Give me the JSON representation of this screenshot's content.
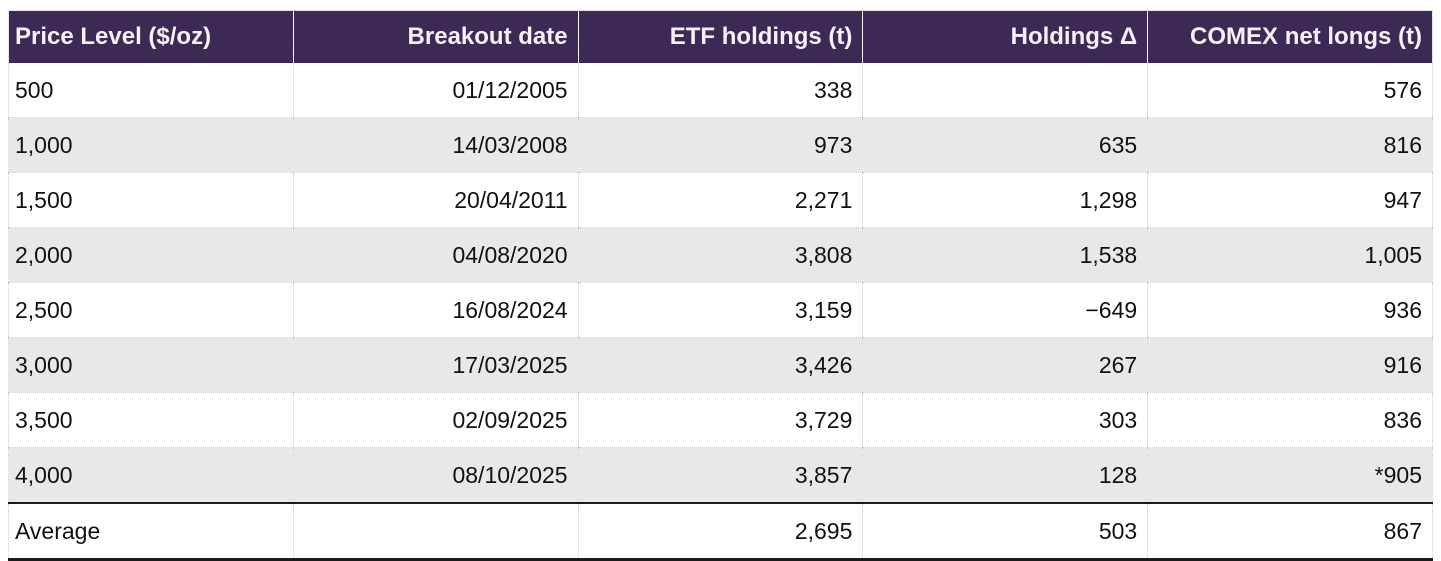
{
  "colors": {
    "header_bg": "#3d2a54",
    "header_text": "#f5f0fa",
    "row_bg": "#ffffff",
    "row_alt_bg": "#e8e8e8",
    "body_text": "#111111",
    "dotted_divider": "#cccccc",
    "strong_rule": "#1c1c1c"
  },
  "table": {
    "columns": [
      {
        "label": "Price Level ($/oz)",
        "align": "left"
      },
      {
        "label": "Breakout date",
        "align": "right"
      },
      {
        "label": "ETF holdings (t)",
        "align": "right"
      },
      {
        "label": "Holdings Δ",
        "align": "right"
      },
      {
        "label": "COMEX net longs (t)",
        "align": "right"
      }
    ],
    "rows": [
      [
        "500",
        "01/12/2005",
        "338",
        "",
        "576"
      ],
      [
        "1,000",
        "14/03/2008",
        "973",
        "635",
        "816"
      ],
      [
        "1,500",
        "20/04/2011",
        "2,271",
        "1,298",
        "947"
      ],
      [
        "2,000",
        "04/08/2020",
        "3,808",
        "1,538",
        "1,005"
      ],
      [
        "2,500",
        "16/08/2024",
        "3,159",
        "−649",
        "936"
      ],
      [
        "3,000",
        "17/03/2025",
        "3,426",
        "267",
        "916"
      ],
      [
        "3,500",
        "02/09/2025",
        "3,729",
        "303",
        "836"
      ],
      [
        "4,000",
        "08/10/2025",
        "3,857",
        "128",
        "*905"
      ]
    ],
    "summary_row": [
      "Average",
      "",
      "2,695",
      "503",
      "867"
    ]
  },
  "chart_data": {
    "type": "table",
    "title": "",
    "columns": [
      "Price Level ($/oz)",
      "Breakout date",
      "ETF holdings (t)",
      "Holdings Δ",
      "COMEX net longs (t)"
    ],
    "rows": [
      {
        "price_level": 500,
        "breakout_date": "01/12/2005",
        "etf_holdings_t": 338,
        "holdings_delta_t": null,
        "comex_net_longs_t": 576
      },
      {
        "price_level": 1000,
        "breakout_date": "14/03/2008",
        "etf_holdings_t": 973,
        "holdings_delta_t": 635,
        "comex_net_longs_t": 816
      },
      {
        "price_level": 1500,
        "breakout_date": "20/04/2011",
        "etf_holdings_t": 2271,
        "holdings_delta_t": 1298,
        "comex_net_longs_t": 947
      },
      {
        "price_level": 2000,
        "breakout_date": "04/08/2020",
        "etf_holdings_t": 3808,
        "holdings_delta_t": 1538,
        "comex_net_longs_t": 1005
      },
      {
        "price_level": 2500,
        "breakout_date": "16/08/2024",
        "etf_holdings_t": 3159,
        "holdings_delta_t": -649,
        "comex_net_longs_t": 936
      },
      {
        "price_level": 3000,
        "breakout_date": "17/03/2025",
        "etf_holdings_t": 3426,
        "holdings_delta_t": 267,
        "comex_net_longs_t": 916
      },
      {
        "price_level": 3500,
        "breakout_date": "02/09/2025",
        "etf_holdings_t": 3729,
        "holdings_delta_t": 303,
        "comex_net_longs_t": 836
      },
      {
        "price_level": 4000,
        "breakout_date": "08/10/2025",
        "etf_holdings_t": 3857,
        "holdings_delta_t": 128,
        "comex_net_longs_t": 905,
        "comex_note": "asterisk-flagged value (*905)"
      }
    ],
    "summary": {
      "label": "Average",
      "etf_holdings_t": 2695,
      "holdings_delta_t": 503,
      "comex_net_longs_t": 867
    }
  }
}
